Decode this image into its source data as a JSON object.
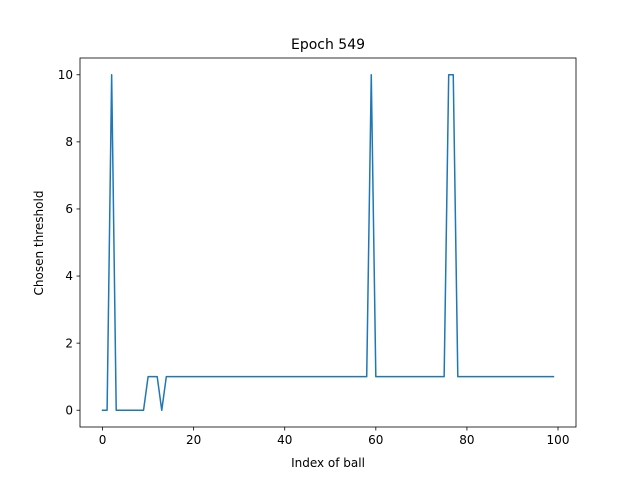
{
  "chart_data": {
    "type": "line",
    "title": "Epoch 549",
    "xlabel": "Index of ball",
    "ylabel": "Chosen threshold",
    "xlim": [
      -4.95,
      103.95
    ],
    "ylim": [
      -0.5,
      10.5
    ],
    "xticks": [
      0,
      20,
      40,
      60,
      80,
      100
    ],
    "yticks": [
      0,
      2,
      4,
      6,
      8,
      10
    ],
    "grid": false,
    "series": [
      {
        "color": "#1f77b4",
        "x": [
          0,
          1,
          2,
          3,
          4,
          5,
          6,
          7,
          8,
          9,
          10,
          11,
          12,
          13,
          14,
          15,
          16,
          17,
          18,
          19,
          20,
          21,
          22,
          23,
          24,
          25,
          26,
          27,
          28,
          29,
          30,
          31,
          32,
          33,
          34,
          35,
          36,
          37,
          38,
          39,
          40,
          41,
          42,
          43,
          44,
          45,
          46,
          47,
          48,
          49,
          50,
          51,
          52,
          53,
          54,
          55,
          56,
          57,
          58,
          59,
          60,
          61,
          62,
          63,
          64,
          65,
          66,
          67,
          68,
          69,
          70,
          71,
          72,
          73,
          74,
          75,
          76,
          77,
          78,
          79,
          80,
          81,
          82,
          83,
          84,
          85,
          86,
          87,
          88,
          89,
          90,
          91,
          92,
          93,
          94,
          95,
          96,
          97,
          98,
          99
        ],
        "y": [
          0,
          0,
          10,
          0,
          0,
          0,
          0,
          0,
          0,
          0,
          1,
          1,
          1,
          0,
          1,
          1,
          1,
          1,
          1,
          1,
          1,
          1,
          1,
          1,
          1,
          1,
          1,
          1,
          1,
          1,
          1,
          1,
          1,
          1,
          1,
          1,
          1,
          1,
          1,
          1,
          1,
          1,
          1,
          1,
          1,
          1,
          1,
          1,
          1,
          1,
          1,
          1,
          1,
          1,
          1,
          1,
          1,
          1,
          1,
          10,
          1,
          1,
          1,
          1,
          1,
          1,
          1,
          1,
          1,
          1,
          1,
          1,
          1,
          1,
          1,
          1,
          10,
          10,
          1,
          1,
          1,
          1,
          1,
          1,
          1,
          1,
          1,
          1,
          1,
          1,
          1,
          1,
          1,
          1,
          1,
          1,
          1,
          1,
          1,
          1
        ]
      }
    ]
  }
}
